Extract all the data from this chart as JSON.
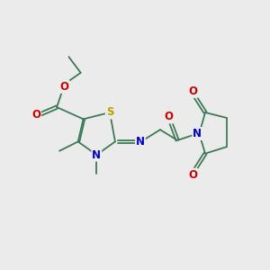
{
  "bg_color": "#ebebeb",
  "bond_color": "#3d7a55",
  "S_color": "#b8a000",
  "N_color": "#0000cc",
  "O_color": "#cc0000",
  "font_size": 8.5,
  "lw": 1.3,
  "figsize": [
    3.0,
    3.0
  ],
  "dpi": 100,
  "xlim": [
    0,
    10
  ],
  "ylim": [
    0,
    10
  ]
}
